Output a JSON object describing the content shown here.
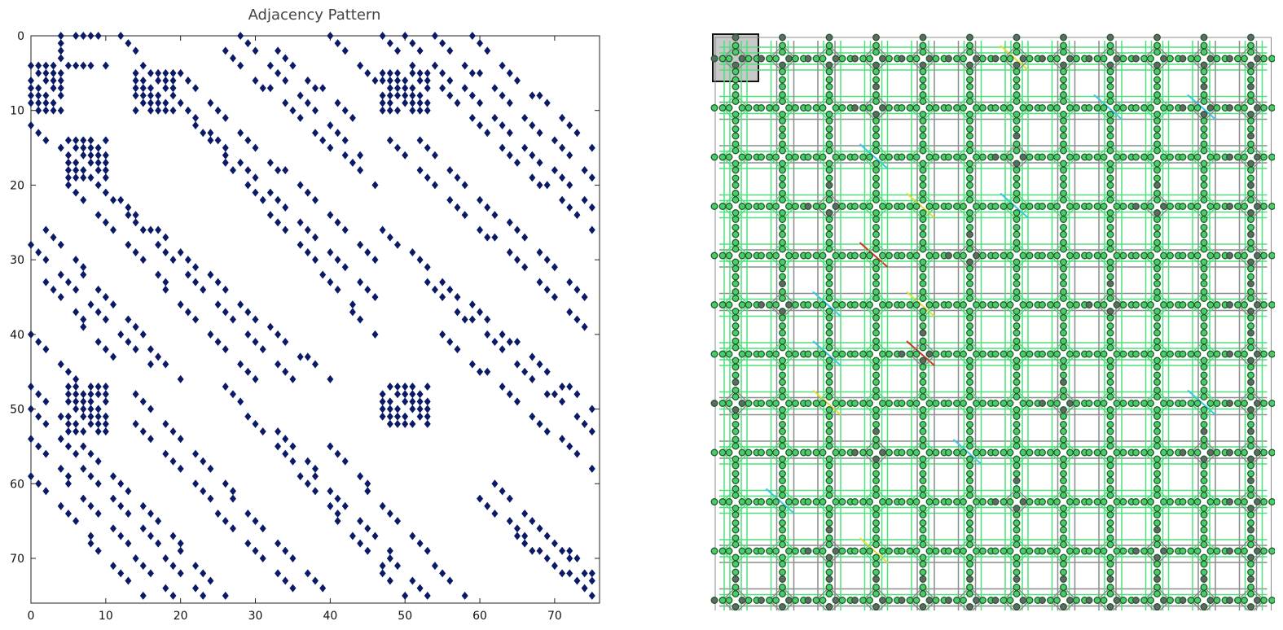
{
  "chart_data": {
    "type": "scatter",
    "subtype": "sparsity-pattern",
    "title": "Adjacency Pattern",
    "xlabel": "",
    "ylabel": "",
    "xlim": [
      0,
      76
    ],
    "ylim": [
      0,
      76
    ],
    "y_inverted": true,
    "x_ticks": [
      "0",
      "10",
      "20",
      "30",
      "40",
      "50",
      "60",
      "70"
    ],
    "y_ticks": [
      "0",
      "10",
      "20",
      "30",
      "40",
      "50",
      "60",
      "70"
    ],
    "marker": "diamond",
    "marker_color": "#0b1a66",
    "grid": false,
    "blocks": [
      [
        [
          4,
          0
        ],
        [
          10,
          0
        ]
      ],
      [
        [
          4,
          0
        ],
        [
          4,
          10
        ]
      ],
      [
        [
          0,
          4
        ],
        [
          10,
          4
        ]
      ],
      [
        [
          0,
          4
        ],
        [
          4,
          10
        ]
      ],
      [
        [
          5,
          14
        ],
        [
          10,
          19
        ]
      ],
      [
        [
          14,
          5
        ],
        [
          19,
          10
        ]
      ],
      [
        [
          5,
          47
        ],
        [
          10,
          53
        ]
      ],
      [
        [
          47,
          5
        ],
        [
          53,
          10
        ]
      ],
      [
        [
          47,
          47
        ],
        [
          53,
          52
        ]
      ]
    ],
    "diagonals": [
      {
        "from": [
          12,
          0
        ],
        "to": [
          46,
          40
        ]
      },
      {
        "from": [
          16,
          5
        ],
        "to": [
          46,
          35
        ]
      },
      {
        "from": [
          20,
          5
        ],
        "to": [
          46,
          30
        ]
      },
      {
        "from": [
          26,
          2
        ],
        "to": [
          46,
          20
        ]
      },
      {
        "from": [
          28,
          0
        ],
        "to": [
          44,
          16
        ]
      },
      {
        "from": [
          33,
          2
        ],
        "to": [
          44,
          12
        ]
      },
      {
        "from": [
          40,
          0
        ],
        "to": [
          48,
          8
        ]
      },
      {
        "from": [
          0,
          12
        ],
        "to": [
          40,
          46
        ]
      },
      {
        "from": [
          5,
          16
        ],
        "to": [
          35,
          46
        ]
      },
      {
        "from": [
          5,
          20
        ],
        "to": [
          30,
          46
        ]
      },
      {
        "from": [
          2,
          26
        ],
        "to": [
          20,
          46
        ]
      },
      {
        "from": [
          0,
          28
        ],
        "to": [
          16,
          44
        ]
      },
      {
        "from": [
          2,
          33
        ],
        "to": [
          12,
          44
        ]
      },
      {
        "from": [
          0,
          40
        ],
        "to": [
          8,
          48
        ]
      },
      {
        "from": [
          47,
          0
        ],
        "to": [
          75,
          26
        ]
      },
      {
        "from": [
          50,
          0
        ],
        "to": [
          75,
          23
        ]
      },
      {
        "from": [
          54,
          0
        ],
        "to": [
          75,
          19
        ]
      },
      {
        "from": [
          59,
          0
        ],
        "to": [
          75,
          15
        ]
      },
      {
        "from": [
          0,
          47
        ],
        "to": [
          26,
          75
        ]
      },
      {
        "from": [
          0,
          50
        ],
        "to": [
          23,
          75
        ]
      },
      {
        "from": [
          0,
          54
        ],
        "to": [
          19,
          75
        ]
      },
      {
        "from": [
          0,
          59
        ],
        "to": [
          15,
          75
        ]
      },
      {
        "from": [
          48,
          14
        ],
        "to": [
          75,
          40
        ]
      },
      {
        "from": [
          52,
          14
        ],
        "to": [
          75,
          36
        ]
      },
      {
        "from": [
          14,
          48
        ],
        "to": [
          40,
          75
        ]
      },
      {
        "from": [
          14,
          52
        ],
        "to": [
          36,
          75
        ]
      },
      {
        "from": [
          47,
          26
        ],
        "to": [
          75,
          50
        ]
      },
      {
        "from": [
          53,
          33
        ],
        "to": [
          75,
          53
        ]
      },
      {
        "from": [
          26,
          47
        ],
        "to": [
          50,
          75
        ]
      },
      {
        "from": [
          33,
          53
        ],
        "to": [
          53,
          75
        ]
      },
      {
        "from": [
          55,
          40
        ],
        "to": [
          75,
          58
        ]
      },
      {
        "from": [
          40,
          55
        ],
        "to": [
          58,
          75
        ]
      },
      {
        "from": [
          60,
          62
        ],
        "to": [
          75,
          75
        ]
      },
      {
        "from": [
          62,
          60
        ],
        "to": [
          75,
          73
        ]
      },
      {
        "from": [
          65,
          67
        ],
        "to": [
          75,
          75
        ]
      },
      {
        "from": [
          67,
          65
        ],
        "to": [
          75,
          72
        ]
      }
    ]
  },
  "mesh": {
    "rows": 12,
    "cols": 12,
    "highlight_cell": [
      0,
      0
    ],
    "colors": {
      "edge_green": "#4ee07a",
      "edge_gray": "#8c8c8c",
      "edge_cyan": "#38c8e8",
      "edge_yellow": "#e8dc38",
      "edge_red": "#d83020",
      "node_fill": "#4ccc68",
      "node_stroke": "#1c5c2c",
      "hub_fill": "#666666",
      "highlight_fill": "#c8c8c8"
    }
  }
}
